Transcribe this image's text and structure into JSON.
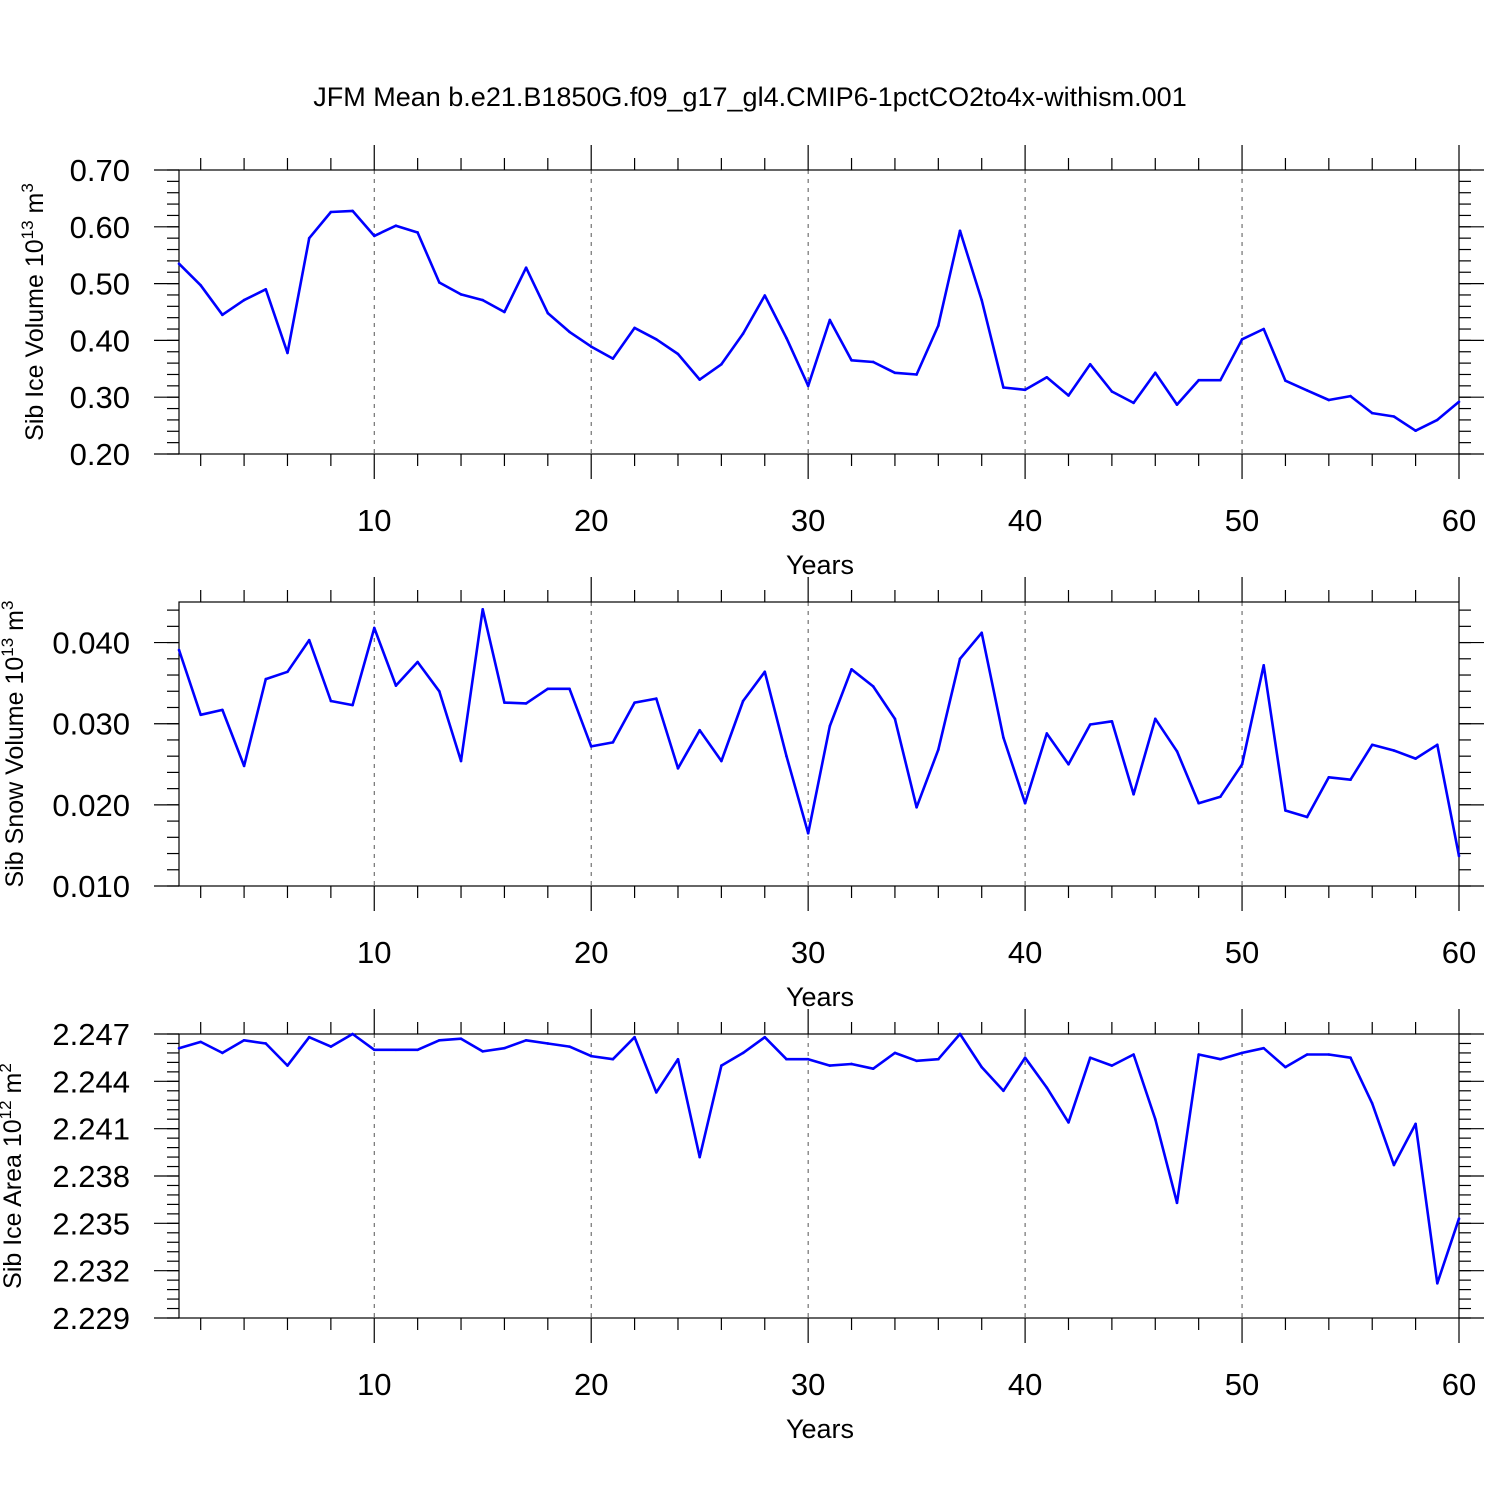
{
  "title": "JFM Mean b.e21.B1850G.f09_g17_gl4.CMIP6-1pctCO2to4x-withism.001",
  "colors": {
    "series": "#0000ff",
    "axes": "#000000"
  },
  "chart_data": [
    {
      "type": "line",
      "ylabel": {
        "main": "Sib Ice Volume 10",
        "sup1": "13",
        "mid": " m",
        "sup2": "3"
      },
      "xlabel": "Years",
      "xlim": [
        1,
        60
      ],
      "ylim": [
        0.2,
        0.7
      ],
      "x_ticks": [
        10,
        20,
        30,
        40,
        50,
        60
      ],
      "x_tick_labels": [
        "10",
        "20",
        "30",
        "40",
        "50",
        "60"
      ],
      "y_ticks": [
        0.2,
        0.3,
        0.4,
        0.5,
        0.6,
        0.7
      ],
      "y_tick_labels": [
        "0.20",
        "0.30",
        "0.40",
        "0.50",
        "0.60",
        "0.70"
      ],
      "y_minor_step": 0.02,
      "grid": "x-dashed",
      "x": [
        1,
        2,
        3,
        4,
        5,
        6,
        7,
        8,
        9,
        10,
        11,
        12,
        13,
        14,
        15,
        16,
        17,
        18,
        19,
        20,
        21,
        22,
        23,
        24,
        25,
        26,
        27,
        28,
        29,
        30,
        31,
        32,
        33,
        34,
        35,
        36,
        37,
        38,
        39,
        40,
        41,
        42,
        43,
        44,
        45,
        46,
        47,
        48,
        49,
        50,
        51,
        52,
        53,
        54,
        55,
        56,
        57,
        58,
        59,
        60
      ],
      "values": [
        0.535,
        0.497,
        0.445,
        0.471,
        0.49,
        0.378,
        0.58,
        0.626,
        0.628,
        0.584,
        0.602,
        0.59,
        0.502,
        0.481,
        0.471,
        0.45,
        0.528,
        0.448,
        0.415,
        0.389,
        0.368,
        0.422,
        0.402,
        0.376,
        0.331,
        0.358,
        0.412,
        0.479,
        0.404,
        0.32,
        0.436,
        0.365,
        0.362,
        0.343,
        0.34,
        0.426,
        0.593,
        0.471,
        0.317,
        0.313,
        0.335,
        0.303,
        0.358,
        0.31,
        0.29,
        0.343,
        0.287,
        0.33,
        0.33,
        0.402,
        0.42,
        0.329,
        0.312,
        0.295,
        0.302,
        0.272,
        0.266,
        0.241,
        0.26,
        0.292
      ]
    },
    {
      "type": "line",
      "ylabel": {
        "main": "Sib Snow Volume 10",
        "sup1": "13",
        "mid": " m",
        "sup2": "3"
      },
      "xlabel": "Years",
      "xlim": [
        1,
        60
      ],
      "ylim": [
        0.01,
        0.045
      ],
      "x_ticks": [
        10,
        20,
        30,
        40,
        50,
        60
      ],
      "x_tick_labels": [
        "10",
        "20",
        "30",
        "40",
        "50",
        "60"
      ],
      "y_ticks": [
        0.01,
        0.02,
        0.03,
        0.04
      ],
      "y_tick_labels": [
        "0.010",
        "0.020",
        "0.030",
        "0.040"
      ],
      "y_minor_step": 0.002,
      "grid": "x-dashed",
      "x": [
        1,
        2,
        3,
        4,
        5,
        6,
        7,
        8,
        9,
        10,
        11,
        12,
        13,
        14,
        15,
        16,
        17,
        18,
        19,
        20,
        21,
        22,
        23,
        24,
        25,
        26,
        27,
        28,
        29,
        30,
        31,
        32,
        33,
        34,
        35,
        36,
        37,
        38,
        39,
        40,
        41,
        42,
        43,
        44,
        45,
        46,
        47,
        48,
        49,
        50,
        51,
        52,
        53,
        54,
        55,
        56,
        57,
        58,
        59,
        60
      ],
      "values": [
        0.0391,
        0.0311,
        0.0317,
        0.0248,
        0.0355,
        0.0364,
        0.0403,
        0.0328,
        0.0323,
        0.0418,
        0.0347,
        0.0376,
        0.034,
        0.0254,
        0.0441,
        0.0326,
        0.0325,
        0.0343,
        0.0343,
        0.0272,
        0.0277,
        0.0326,
        0.0331,
        0.0245,
        0.0292,
        0.0254,
        0.0328,
        0.0364,
        0.026,
        0.0165,
        0.0297,
        0.0367,
        0.0346,
        0.0306,
        0.0197,
        0.0268,
        0.038,
        0.0412,
        0.0283,
        0.0202,
        0.0288,
        0.025,
        0.0299,
        0.0303,
        0.0213,
        0.0306,
        0.0266,
        0.0202,
        0.021,
        0.025,
        0.0372,
        0.0193,
        0.0185,
        0.0234,
        0.0231,
        0.0274,
        0.0267,
        0.0257,
        0.0274,
        0.0137
      ]
    },
    {
      "type": "line",
      "ylabel": {
        "main": "Sib Ice Area 10",
        "sup1": "12",
        "mid": " m",
        "sup2": "2"
      },
      "xlabel": "Years",
      "xlim": [
        1,
        60
      ],
      "ylim": [
        2.229,
        2.247
      ],
      "x_ticks": [
        10,
        20,
        30,
        40,
        50,
        60
      ],
      "x_tick_labels": [
        "10",
        "20",
        "30",
        "40",
        "50",
        "60"
      ],
      "y_ticks": [
        2.229,
        2.232,
        2.235,
        2.238,
        2.241,
        2.244,
        2.247
      ],
      "y_tick_labels": [
        "2.229",
        "2.232",
        "2.235",
        "2.238",
        "2.241",
        "2.244",
        "2.247"
      ],
      "y_minor_step": 0.0006,
      "grid": "x-dashed",
      "x": [
        1,
        2,
        3,
        4,
        5,
        6,
        7,
        8,
        9,
        10,
        11,
        12,
        13,
        14,
        15,
        16,
        17,
        18,
        19,
        20,
        21,
        22,
        23,
        24,
        25,
        26,
        27,
        28,
        29,
        30,
        31,
        32,
        33,
        34,
        35,
        36,
        37,
        38,
        39,
        40,
        41,
        42,
        43,
        44,
        45,
        46,
        47,
        48,
        49,
        50,
        51,
        52,
        53,
        54,
        55,
        56,
        57,
        58,
        59,
        60
      ],
      "values": [
        2.2461,
        2.2465,
        2.2458,
        2.2466,
        2.2464,
        2.245,
        2.2468,
        2.2462,
        2.247,
        2.246,
        2.246,
        2.246,
        2.2466,
        2.2467,
        2.2459,
        2.2461,
        2.2466,
        2.2464,
        2.2462,
        2.2456,
        2.2454,
        2.2468,
        2.2433,
        2.2454,
        2.2392,
        2.245,
        2.2458,
        2.2468,
        2.2454,
        2.2454,
        2.245,
        2.2451,
        2.2448,
        2.2458,
        2.2453,
        2.2454,
        2.247,
        2.2449,
        2.2434,
        2.2455,
        2.2436,
        2.2414,
        2.2455,
        2.245,
        2.2457,
        2.2416,
        2.2363,
        2.2457,
        2.2454,
        2.2458,
        2.2461,
        2.2449,
        2.2457,
        2.2457,
        2.2455,
        2.2426,
        2.2387,
        2.2413,
        2.2312,
        2.2353
      ]
    }
  ]
}
